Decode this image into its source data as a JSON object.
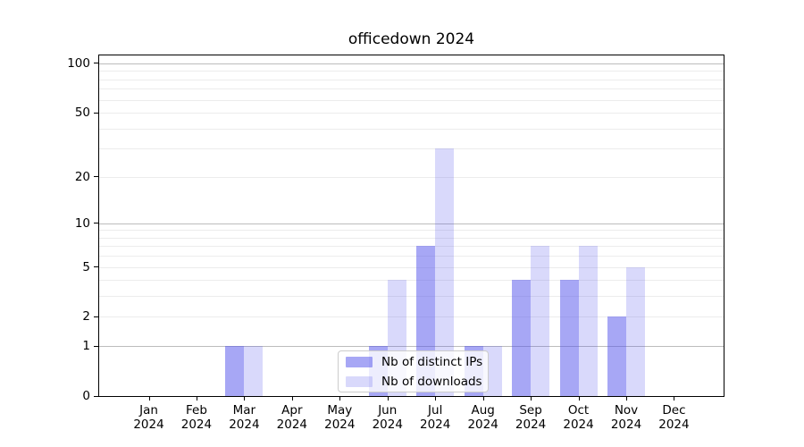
{
  "figure": {
    "background": "#ffffff",
    "spine_color": "#000000"
  },
  "chart_data": {
    "type": "bar",
    "title": "officedown 2024",
    "categories": [
      "Jan 2024",
      "Feb 2024",
      "Mar 2024",
      "Apr 2024",
      "May 2024",
      "Jun 2024",
      "Jul 2024",
      "Aug 2024",
      "Sep 2024",
      "Oct 2024",
      "Nov 2024",
      "Dec 2024"
    ],
    "series": [
      {
        "name": "Nb of distinct IPs",
        "color": "rgba(80,80,235,0.50)",
        "values": [
          0,
          0,
          1,
          0,
          0,
          1,
          7,
          1,
          4,
          4,
          2,
          0
        ]
      },
      {
        "name": "Nb of downloads",
        "color": "rgba(80,80,235,0.22)",
        "values": [
          0,
          0,
          1,
          0,
          0,
          4,
          30,
          1,
          7,
          7,
          5,
          0
        ]
      }
    ],
    "y_axis": {
      "scale": "log1p",
      "ticks": [
        0,
        1,
        2,
        5,
        10,
        20,
        50,
        100
      ],
      "limit": [
        0,
        112
      ]
    },
    "x_axis": {
      "ticks_per_month": true,
      "year": "2024"
    },
    "grid": {
      "major": [
        1,
        10,
        100
      ],
      "minor": [
        2,
        3,
        4,
        5,
        6,
        7,
        8,
        9,
        20,
        30,
        40,
        50,
        60,
        70,
        80,
        90
      ],
      "major_color": "#bcbcbc",
      "minor_color": "#ececec"
    },
    "legend_position": "lower center"
  }
}
